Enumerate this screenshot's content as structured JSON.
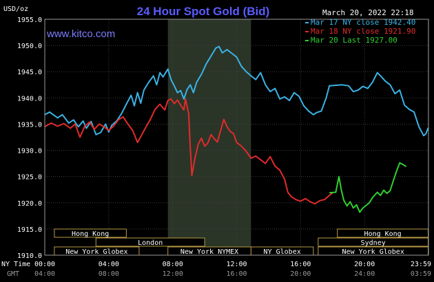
{
  "chart_data": {
    "type": "line",
    "title": "24 Hour Spot Gold (Bid)",
    "watermark": "www.kitco.com",
    "timestamp": "March 20, 2022 22:18",
    "y_unit": "USD/oz",
    "ylim": [
      1910,
      1955
    ],
    "yticks": [
      "1955.0",
      "1950.0",
      "1945.0",
      "1940.0",
      "1935.0",
      "1930.0",
      "1925.0",
      "1920.0",
      "1915.0",
      "1910.0"
    ],
    "x_range": [
      0,
      24
    ],
    "grid": true,
    "legend_position": "top-right",
    "xaxis": {
      "row1_label": "NY Time",
      "row2_label": "GMT",
      "ticks": [
        {
          "hour": 0,
          "ny": "00:00",
          "gmt": "04:00"
        },
        {
          "hour": 4,
          "ny": "04:00",
          "gmt": "08:00"
        },
        {
          "hour": 8,
          "ny": "08:00",
          "gmt": "12:00"
        },
        {
          "hour": 12,
          "ny": "12:00",
          "gmt": "16:00"
        },
        {
          "hour": 16,
          "ny": "16:00",
          "gmt": "20:00"
        },
        {
          "hour": 20,
          "ny": "20:00",
          "gmt": "24:00"
        },
        {
          "hour": 23.98,
          "ny": "23:59",
          "gmt": "03:59"
        }
      ]
    },
    "shaded_session": [
      7.7,
      12.9
    ],
    "series": [
      {
        "name": "Mar 17 NY close 1942.40",
        "color": "#3ab4e6",
        "points": [
          [
            0,
            1936.8
          ],
          [
            0.3,
            1937.3
          ],
          [
            0.8,
            1936.2
          ],
          [
            1.1,
            1936.8
          ],
          [
            1.5,
            1935.2
          ],
          [
            1.8,
            1935.8
          ],
          [
            2.1,
            1934.5
          ],
          [
            2.4,
            1935.6
          ],
          [
            2.6,
            1934.2
          ],
          [
            2.9,
            1935.5
          ],
          [
            3.2,
            1933.0
          ],
          [
            3.5,
            1933.4
          ],
          [
            3.8,
            1935.0
          ],
          [
            4.0,
            1933.5
          ],
          [
            4.2,
            1934.8
          ],
          [
            4.5,
            1935.6
          ],
          [
            4.8,
            1937.0
          ],
          [
            5.1,
            1938.8
          ],
          [
            5.4,
            1940.5
          ],
          [
            5.6,
            1938.5
          ],
          [
            5.8,
            1941.0
          ],
          [
            6.0,
            1939.0
          ],
          [
            6.2,
            1941.5
          ],
          [
            6.5,
            1943.0
          ],
          [
            6.8,
            1944.2
          ],
          [
            7.0,
            1942.5
          ],
          [
            7.2,
            1944.8
          ],
          [
            7.4,
            1944.0
          ],
          [
            7.7,
            1945.5
          ],
          [
            7.9,
            1943.5
          ],
          [
            8.1,
            1942.3
          ],
          [
            8.3,
            1941.0
          ],
          [
            8.5,
            1941.4
          ],
          [
            8.7,
            1939.8
          ],
          [
            8.9,
            1941.6
          ],
          [
            9.1,
            1942.5
          ],
          [
            9.3,
            1941.0
          ],
          [
            9.5,
            1943.0
          ],
          [
            9.8,
            1944.5
          ],
          [
            10.1,
            1946.5
          ],
          [
            10.4,
            1948.0
          ],
          [
            10.7,
            1949.5
          ],
          [
            10.9,
            1949.8
          ],
          [
            11.1,
            1948.6
          ],
          [
            11.4,
            1949.2
          ],
          [
            11.7,
            1948.5
          ],
          [
            12.0,
            1947.8
          ],
          [
            12.3,
            1946.0
          ],
          [
            12.6,
            1945.0
          ],
          [
            12.9,
            1944.2
          ],
          [
            13.2,
            1943.5
          ],
          [
            13.5,
            1944.8
          ],
          [
            13.8,
            1942.5
          ],
          [
            14.1,
            1941.2
          ],
          [
            14.4,
            1941.8
          ],
          [
            14.7,
            1939.8
          ],
          [
            15.0,
            1940.2
          ],
          [
            15.3,
            1939.5
          ],
          [
            15.6,
            1941.0
          ],
          [
            15.9,
            1940.3
          ],
          [
            16.2,
            1938.5
          ],
          [
            16.5,
            1937.5
          ],
          [
            16.8,
            1936.8
          ],
          [
            17.0,
            1937.2
          ],
          [
            17.3,
            1937.5
          ],
          [
            17.6,
            1940.0
          ],
          [
            17.8,
            1942.3
          ],
          [
            18.2,
            1942.4
          ],
          [
            18.6,
            1942.5
          ],
          [
            19.0,
            1942.3
          ],
          [
            19.3,
            1941.2
          ],
          [
            19.6,
            1941.5
          ],
          [
            19.9,
            1942.2
          ],
          [
            20.2,
            1941.8
          ],
          [
            20.5,
            1943.0
          ],
          [
            20.8,
            1944.8
          ],
          [
            21.0,
            1944.2
          ],
          [
            21.3,
            1943.2
          ],
          [
            21.6,
            1942.5
          ],
          [
            21.9,
            1940.8
          ],
          [
            22.2,
            1941.5
          ],
          [
            22.5,
            1938.6
          ],
          [
            22.8,
            1937.8
          ],
          [
            23.1,
            1937.3
          ],
          [
            23.4,
            1934.5
          ],
          [
            23.7,
            1932.8
          ],
          [
            23.85,
            1933.2
          ],
          [
            23.98,
            1934.3
          ]
        ]
      },
      {
        "name": "Mar 18 NY close 1921.90",
        "color": "#e32b2b",
        "points": [
          [
            0,
            1934.5
          ],
          [
            0.4,
            1935.2
          ],
          [
            0.8,
            1934.6
          ],
          [
            1.2,
            1935.1
          ],
          [
            1.6,
            1934.2
          ],
          [
            1.9,
            1935.0
          ],
          [
            2.2,
            1932.5
          ],
          [
            2.5,
            1934.6
          ],
          [
            2.8,
            1935.4
          ],
          [
            3.1,
            1934.0
          ],
          [
            3.4,
            1935.0
          ],
          [
            3.7,
            1934.5
          ],
          [
            4.0,
            1933.8
          ],
          [
            4.3,
            1934.6
          ],
          [
            4.6,
            1935.8
          ],
          [
            4.9,
            1936.4
          ],
          [
            5.2,
            1935.0
          ],
          [
            5.5,
            1933.8
          ],
          [
            5.8,
            1931.5
          ],
          [
            6.0,
            1932.6
          ],
          [
            6.3,
            1934.3
          ],
          [
            6.6,
            1935.9
          ],
          [
            6.9,
            1937.8
          ],
          [
            7.2,
            1938.8
          ],
          [
            7.5,
            1937.7
          ],
          [
            7.7,
            1939.5
          ],
          [
            7.9,
            1939.8
          ],
          [
            8.1,
            1938.9
          ],
          [
            8.3,
            1939.6
          ],
          [
            8.5,
            1938.6
          ],
          [
            8.7,
            1937.7
          ],
          [
            8.8,
            1939.8
          ],
          [
            9.0,
            1937.0
          ],
          [
            9.1,
            1930.5
          ],
          [
            9.2,
            1925.2
          ],
          [
            9.4,
            1928.6
          ],
          [
            9.6,
            1931.2
          ],
          [
            9.8,
            1932.3
          ],
          [
            10.0,
            1930.8
          ],
          [
            10.2,
            1931.4
          ],
          [
            10.4,
            1933.0
          ],
          [
            10.6,
            1932.2
          ],
          [
            10.8,
            1931.6
          ],
          [
            11.0,
            1933.8
          ],
          [
            11.2,
            1935.9
          ],
          [
            11.4,
            1934.5
          ],
          [
            11.6,
            1933.6
          ],
          [
            11.8,
            1933.2
          ],
          [
            12.0,
            1931.5
          ],
          [
            12.3,
            1930.8
          ],
          [
            12.6,
            1929.8
          ],
          [
            12.9,
            1928.5
          ],
          [
            13.2,
            1928.9
          ],
          [
            13.5,
            1928.2
          ],
          [
            13.8,
            1927.5
          ],
          [
            14.1,
            1928.8
          ],
          [
            14.4,
            1927.0
          ],
          [
            14.7,
            1926.2
          ],
          [
            15.0,
            1924.5
          ],
          [
            15.2,
            1922.0
          ],
          [
            15.4,
            1921.2
          ],
          [
            15.7,
            1920.6
          ],
          [
            16.0,
            1920.3
          ],
          [
            16.3,
            1920.8
          ],
          [
            16.6,
            1920.2
          ],
          [
            16.9,
            1919.8
          ],
          [
            17.2,
            1920.4
          ],
          [
            17.5,
            1920.6
          ],
          [
            17.8,
            1921.4
          ],
          [
            18.0,
            1921.9
          ]
        ]
      },
      {
        "name": "Mar 20 Last 1927.00",
        "color": "#2fd12f",
        "points": [
          [
            17.8,
            1921.9
          ],
          [
            18.2,
            1922.0
          ],
          [
            18.4,
            1925.0
          ],
          [
            18.55,
            1922.4
          ],
          [
            18.7,
            1920.5
          ],
          [
            18.9,
            1919.4
          ],
          [
            19.1,
            1920.2
          ],
          [
            19.3,
            1919.0
          ],
          [
            19.5,
            1919.6
          ],
          [
            19.7,
            1918.2
          ],
          [
            19.9,
            1919.0
          ],
          [
            20.1,
            1919.5
          ],
          [
            20.3,
            1920.0
          ],
          [
            20.5,
            1921.0
          ],
          [
            20.8,
            1922.0
          ],
          [
            21.0,
            1921.4
          ],
          [
            21.2,
            1922.4
          ],
          [
            21.4,
            1921.8
          ],
          [
            21.6,
            1922.3
          ],
          [
            21.8,
            1924.2
          ],
          [
            22.0,
            1926.0
          ],
          [
            22.2,
            1927.6
          ],
          [
            22.4,
            1927.3
          ],
          [
            22.6,
            1926.9
          ]
        ]
      }
    ],
    "markets": [
      {
        "name": "Hong Kong",
        "start": 0.6,
        "end": 5.1,
        "row": 1
      },
      {
        "name": "London",
        "start": 3.2,
        "end": 10.0,
        "row": 2
      },
      {
        "name": "New York Globex",
        "start": 0.6,
        "end": 5.9,
        "row": 3
      },
      {
        "name": "New York NYMEX",
        "start": 7.7,
        "end": 12.9,
        "row": 3
      },
      {
        "name": "NY Globex",
        "start": 12.9,
        "end": 16.8,
        "row": 3
      },
      {
        "name": "Hong Kong",
        "start": 18.3,
        "end": 23.98,
        "row": 1
      },
      {
        "name": "Sydney",
        "start": 17.1,
        "end": 23.98,
        "row": 2
      },
      {
        "name": "New York Globex",
        "start": 17.1,
        "end": 23.98,
        "row": 3
      }
    ]
  }
}
